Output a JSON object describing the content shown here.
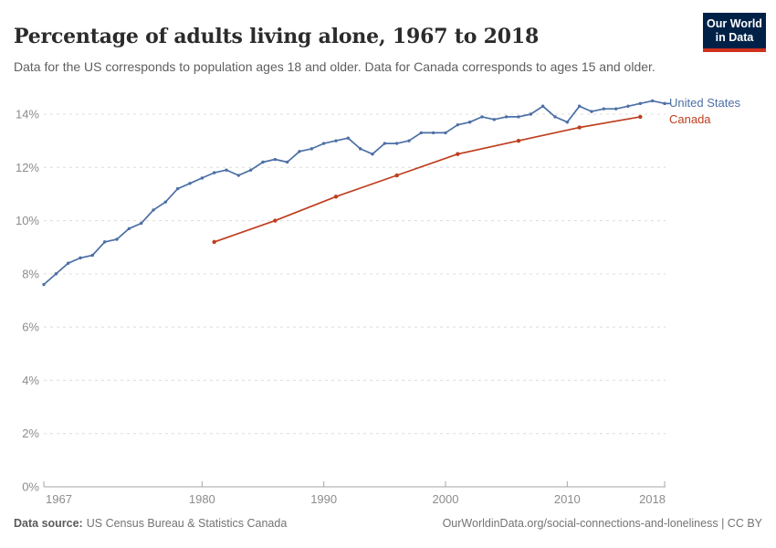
{
  "header": {
    "title": "Percentage of adults living alone, 1967 to 2018",
    "subtitle": "Data for the US corresponds to population ages 18 and older. Data for Canada corresponds to ages 15 and older."
  },
  "logo": {
    "line1": "Our World",
    "line2": "in Data",
    "bg_color": "#002147",
    "stripe_color": "#D0311D"
  },
  "chart_data": {
    "type": "line",
    "title": "Percentage of adults living alone, 1967 to 2018",
    "xlabel": "",
    "ylabel": "",
    "xlim": [
      1967,
      2018
    ],
    "ylim": [
      0,
      14
    ],
    "x_ticks": [
      1967,
      1980,
      1990,
      2000,
      2010,
      2018
    ],
    "y_ticks": [
      0,
      2,
      4,
      6,
      8,
      10,
      12,
      14
    ],
    "y_tick_suffix": "%",
    "grid": "horizontal-dashed",
    "legend_position": "right-of-line-end",
    "colors": {
      "grid": "#dcdcdc",
      "axis": "#a6a6a6",
      "tick_label": "#8c8c8c"
    },
    "series": [
      {
        "name": "United States",
        "color": "#4C6FA5",
        "x": [
          1967,
          1968,
          1969,
          1970,
          1971,
          1972,
          1973,
          1974,
          1975,
          1976,
          1977,
          1978,
          1979,
          1980,
          1981,
          1982,
          1983,
          1984,
          1985,
          1986,
          1987,
          1988,
          1989,
          1990,
          1991,
          1992,
          1993,
          1994,
          1995,
          1996,
          1997,
          1998,
          1999,
          2000,
          2001,
          2002,
          2003,
          2004,
          2005,
          2006,
          2007,
          2008,
          2009,
          2010,
          2011,
          2012,
          2013,
          2014,
          2015,
          2016,
          2017,
          2018
        ],
        "values": [
          7.6,
          8.0,
          8.4,
          8.6,
          8.7,
          9.2,
          9.3,
          9.7,
          9.9,
          10.4,
          10.7,
          11.2,
          11.4,
          11.6,
          11.8,
          11.9,
          11.7,
          11.9,
          12.2,
          12.3,
          12.2,
          12.6,
          12.7,
          12.9,
          13.0,
          13.1,
          12.7,
          12.5,
          12.9,
          12.9,
          13.0,
          13.3,
          13.3,
          13.3,
          13.6,
          13.7,
          13.9,
          13.8,
          13.9,
          13.9,
          14.0,
          14.3,
          13.9,
          13.7,
          14.3,
          14.1,
          14.2,
          14.2,
          14.3,
          14.4,
          14.5,
          14.4
        ]
      },
      {
        "name": "Canada",
        "color": "#BE3E1F",
        "x": [
          1981,
          1986,
          1991,
          1996,
          2001,
          2006,
          2011,
          2016
        ],
        "values": [
          9.2,
          10.0,
          10.9,
          11.7,
          12.5,
          13.0,
          13.5,
          13.9
        ]
      }
    ]
  },
  "footer": {
    "source_label": "Data source:",
    "source_text": "US Census Bureau & Statistics Canada",
    "link_text": "OurWorldinData.org/social-connections-and-loneliness",
    "divider": " | ",
    "license": "CC BY"
  }
}
